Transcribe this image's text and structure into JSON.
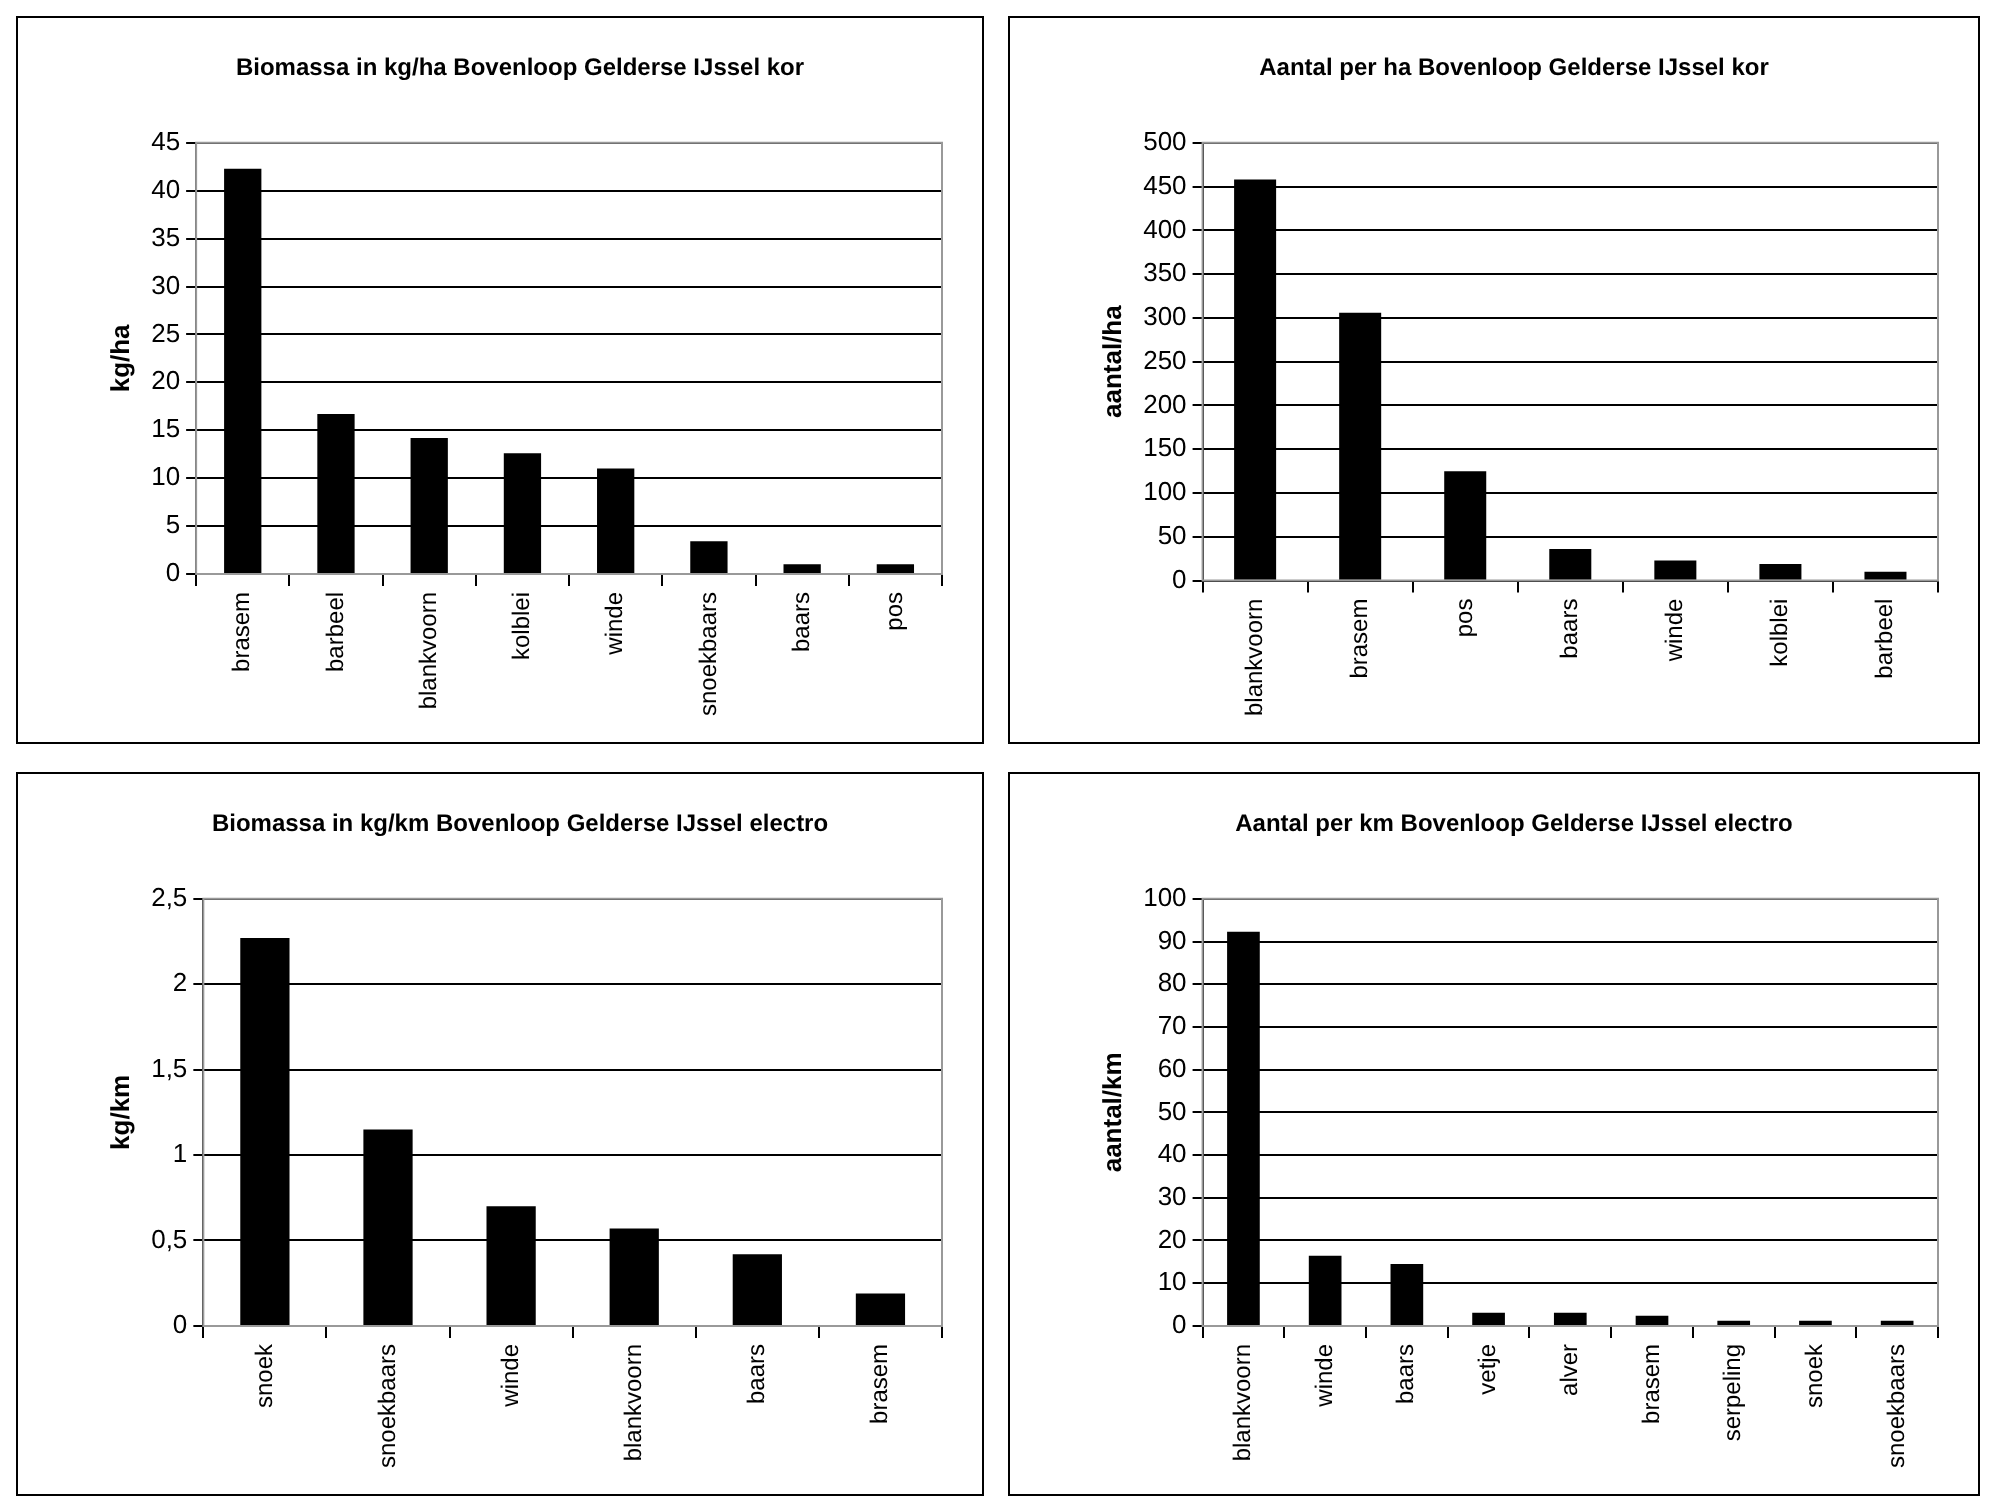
{
  "chart_data": [
    {
      "type": "bar",
      "title": "Biomassa in kg/ha Bovenloop Gelderse IJssel kor",
      "ylabel": "kg/ha",
      "categories": [
        "brasem",
        "barbeel",
        "blankvoorn",
        "kolblei",
        "winde",
        "snoekbaars",
        "baars",
        "pos"
      ],
      "values": [
        42.3,
        16.7,
        14.2,
        12.6,
        11.0,
        3.4,
        1.0,
        1.0
      ],
      "color": "#000000",
      "ylim": [
        0,
        45
      ],
      "yticks": [
        0,
        5,
        10,
        15,
        20,
        25,
        30,
        35,
        40,
        45
      ],
      "grid": "y",
      "legend": false
    },
    {
      "type": "bar",
      "title": "Aantal per ha Bovenloop Gelderse IJssel kor",
      "ylabel": "aantal/ha",
      "categories": [
        "blankvoorn",
        "brasem",
        "pos",
        "baars",
        "winde",
        "kolblei",
        "barbeel"
      ],
      "values": [
        458,
        306,
        125,
        36,
        23,
        19,
        10
      ],
      "color": "#000000",
      "ylim": [
        0,
        500
      ],
      "yticks": [
        0,
        50,
        100,
        150,
        200,
        250,
        300,
        350,
        400,
        450,
        500
      ],
      "grid": "y",
      "legend": false
    },
    {
      "type": "bar",
      "title": "Biomassa in kg/km Bovenloop Gelderse IJssel electro",
      "ylabel": "kg/km",
      "categories": [
        "snoek",
        "snoekbaars",
        "winde",
        "blankvoorn",
        "baars",
        "brasem"
      ],
      "values": [
        2.27,
        1.15,
        0.7,
        0.57,
        0.42,
        0.19
      ],
      "color": "#000000",
      "ylim": [
        0,
        2.5
      ],
      "yticks": [
        0,
        {
          "value": 0.5,
          "label": "0,5"
        },
        1,
        {
          "value": 1.5,
          "label": "1,5"
        },
        2,
        {
          "value": 2.5,
          "label": "2,5"
        }
      ],
      "grid": "y",
      "legend": false
    },
    {
      "type": "bar",
      "title": "Aantal per km Bovenloop Gelderse IJssel electro",
      "ylabel": "aantal/km",
      "categories": [
        "blankvoorn",
        "winde",
        "baars",
        "vetje",
        "alver",
        "brasem",
        "serpeling",
        "snoek",
        "snoekbaars"
      ],
      "values": [
        92.3,
        16.4,
        14.5,
        3.1,
        3.1,
        2.4,
        1.2,
        1.2,
        1.2
      ],
      "color": "#000000",
      "ylim": [
        0,
        100
      ],
      "yticks": [
        0,
        10,
        20,
        30,
        40,
        50,
        60,
        70,
        80,
        90,
        100
      ],
      "grid": "y",
      "legend": false
    }
  ]
}
